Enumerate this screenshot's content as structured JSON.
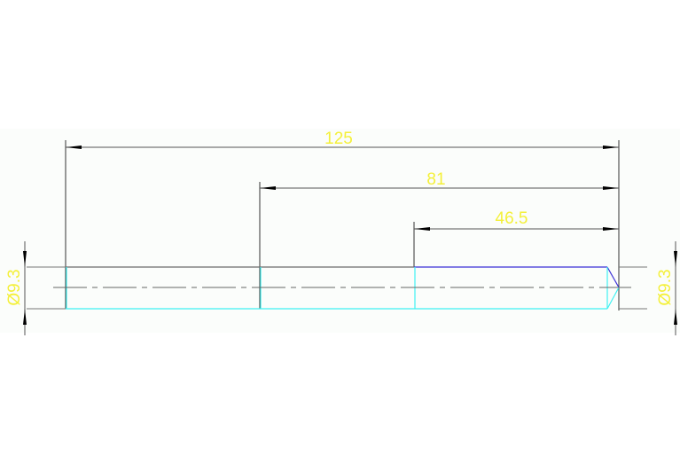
{
  "drawing": {
    "dimensions": {
      "overall_length": "125",
      "middle_length": "81",
      "end_length": "46.5",
      "diameter_left": "Ø9.3",
      "diameter_right": "Ø9.3"
    },
    "colors": {
      "background_band": "#fbfdfb",
      "dimension_text": "#f4f03a",
      "dimension_lines": "#000000",
      "outline_cyan": "#3ff2f2",
      "outline_blue": "#3a2fd6",
      "outline_grey": "#6b6b6b"
    }
  }
}
